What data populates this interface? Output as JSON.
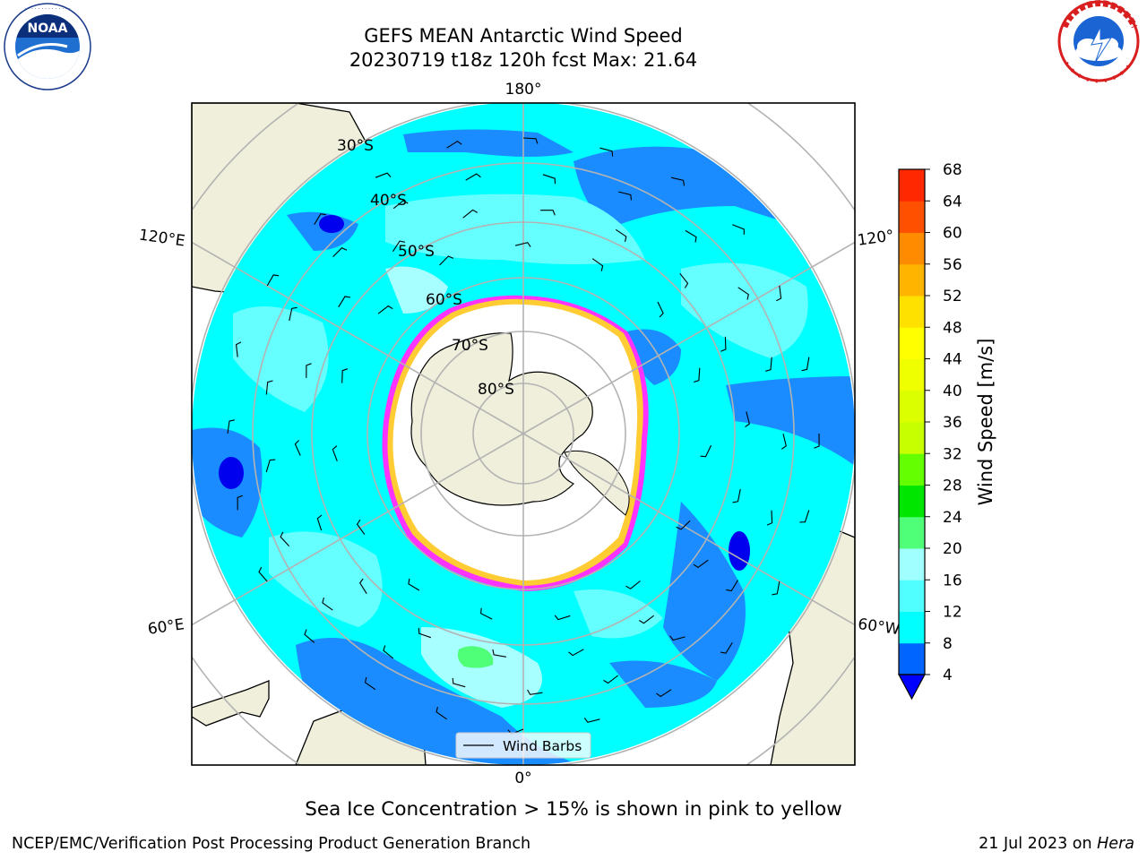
{
  "title": {
    "line1": "GEFS MEAN Antarctic Wind Speed",
    "line2": "20230719 t18z 120h fcst   Max: 21.64"
  },
  "map": {
    "projection": "south polar stereographic",
    "longitude_labels": {
      "top": "180°",
      "bottom": "0°",
      "left_upper": "120°E",
      "left_lower": "60°E",
      "right_upper": "120°",
      "right_lower": "60°W"
    },
    "latitude_labels": [
      "30°S",
      "40°S",
      "50°S",
      "60°S",
      "70°S",
      "80°S"
    ],
    "legend_label": "Wind Barbs",
    "land_color": "#efefdb",
    "ice_edge_colors": [
      "#ff33ff",
      "#ffcc33"
    ]
  },
  "colorbar": {
    "title": "Wind Speed [m/s]",
    "ticks": [
      "4",
      "8",
      "12",
      "16",
      "20",
      "24",
      "28",
      "32",
      "36",
      "40",
      "44",
      "48",
      "52",
      "56",
      "60",
      "64",
      "68"
    ],
    "colors": [
      "#0064ff",
      "#00ffff",
      "#50ffff",
      "#a0ffff",
      "#50ff78",
      "#00e600",
      "#64ff00",
      "#c8ff00",
      "#dcff00",
      "#f0ff00",
      "#ffff00",
      "#ffe100",
      "#ffb400",
      "#ff8c00",
      "#ff5000",
      "#ff2800",
      "#ff0000"
    ],
    "under_color": "#0000ff"
  },
  "caption": "Sea Ice Concentration > 15% is shown in pink to yellow",
  "footer": {
    "left": "NCEP/EMC/Verification Post Processing Product Generation Branch",
    "date": "21 Jul 2023 on ",
    "machine": "Hera"
  },
  "logos": {
    "noaa": "NOAA",
    "nws": "NATIONAL WEATHER SERVICE"
  }
}
